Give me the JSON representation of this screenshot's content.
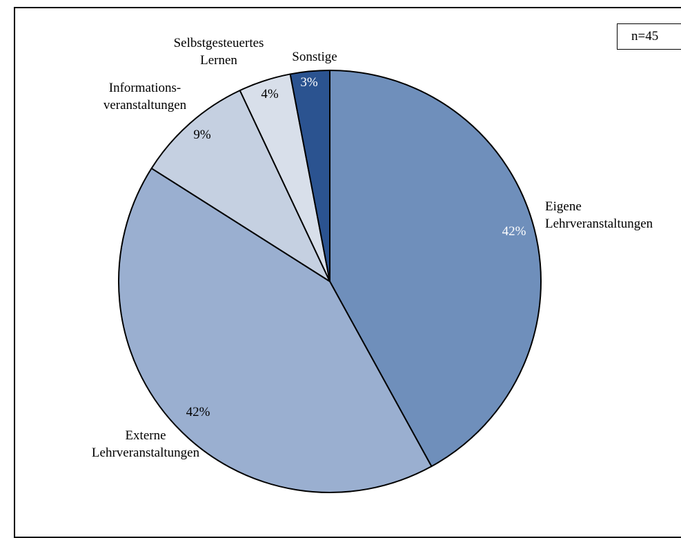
{
  "chart_data": {
    "type": "pie",
    "sample_note": "n=45",
    "slices": [
      {
        "label": "Eigene Lehrveranstaltungen",
        "label_lines": [
          "Eigene",
          "Lehrveranstaltungen"
        ],
        "value": 42,
        "value_label": "42%",
        "color": "#6F8FBB",
        "value_color": "#ffffff"
      },
      {
        "label": "Externe Lehrveranstaltungen",
        "label_lines": [
          "Externe",
          "Lehrveranstaltungen"
        ],
        "value": 42,
        "value_label": "42%",
        "color": "#9AAFD0",
        "value_color": "#000000"
      },
      {
        "label": "Informationsveranstaltungen",
        "label_lines": [
          "Informations-",
          "veranstaltungen"
        ],
        "value": 9,
        "value_label": "9%",
        "color": "#C5D0E1",
        "value_color": "#000000"
      },
      {
        "label": "Selbstgesteuertes Lernen",
        "label_lines": [
          "Selbstgesteuertes",
          "Lernen"
        ],
        "value": 4,
        "value_label": "4%",
        "color": "#D8DFEA",
        "value_color": "#000000"
      },
      {
        "label": "Sonstige",
        "label_lines": [
          "Sonstige"
        ],
        "value": 3,
        "value_label": "3%",
        "color": "#2B5390",
        "value_color": "#ffffff"
      }
    ]
  }
}
